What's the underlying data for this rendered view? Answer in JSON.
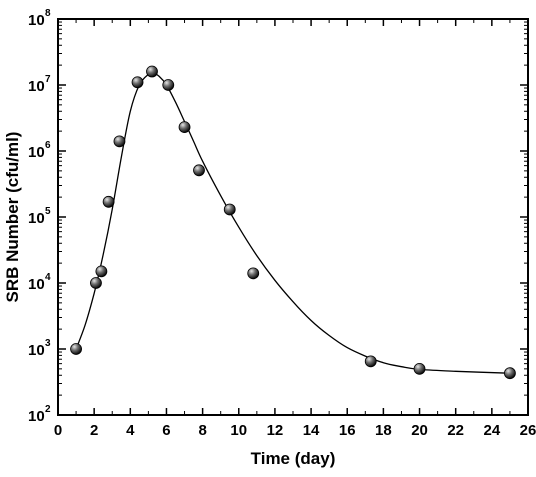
{
  "chart_data": {
    "type": "scatter",
    "xlabel": "Time (day)",
    "ylabel": "SRB Number (cfu/ml)",
    "xlim": [
      0,
      26
    ],
    "ylim": [
      100,
      100000000
    ],
    "y_scale": "log",
    "grid": false,
    "x_ticks": [
      0,
      2,
      4,
      6,
      8,
      10,
      12,
      14,
      16,
      18,
      20,
      22,
      24,
      26
    ],
    "x_tick_labels": [
      "0",
      "2",
      "4",
      "6",
      "8",
      "10",
      "12",
      "14",
      "16",
      "18",
      "20",
      "22",
      "24",
      "26"
    ],
    "y_ticks": [
      100,
      1000,
      10000,
      100000,
      1000000,
      10000000,
      100000000
    ],
    "y_tick_base": "10",
    "y_tick_exponents": [
      "2",
      "3",
      "4",
      "5",
      "6",
      "7",
      "8"
    ],
    "series": [
      {
        "x": [
          1.0,
          2.1,
          2.4,
          2.8,
          3.4,
          4.4,
          5.2,
          6.1,
          7.0,
          7.8,
          9.5,
          10.8,
          17.3,
          20.0,
          25.0
        ],
        "y": [
          1000,
          10000,
          15000,
          170000,
          1400000,
          11000000,
          16000000,
          10000000,
          2300000,
          510000,
          130000,
          14000,
          650,
          500,
          430
        ]
      }
    ],
    "fit_curve": {
      "x": [
        1.0,
        1.5,
        2.0,
        2.5,
        3.0,
        3.5,
        4.0,
        4.5,
        5.0,
        5.3,
        5.6,
        6.0,
        6.5,
        7.0,
        7.5,
        8.0,
        9.0,
        10.0,
        11.0,
        12.0,
        13.0,
        14.0,
        15.0,
        16.0,
        17.0,
        18.0,
        19.0,
        20.0,
        22.0,
        25.0
      ],
      "y": [
        1000,
        2300,
        7000,
        27000,
        130000,
        800000,
        4000000,
        10000000,
        14500000,
        15000000,
        13500000,
        10000000,
        5500000,
        2800000,
        1400000,
        700000,
        210000,
        70000,
        26000,
        11000,
        5200,
        2700,
        1600,
        1050,
        780,
        620,
        540,
        490,
        460,
        430
      ]
    }
  }
}
